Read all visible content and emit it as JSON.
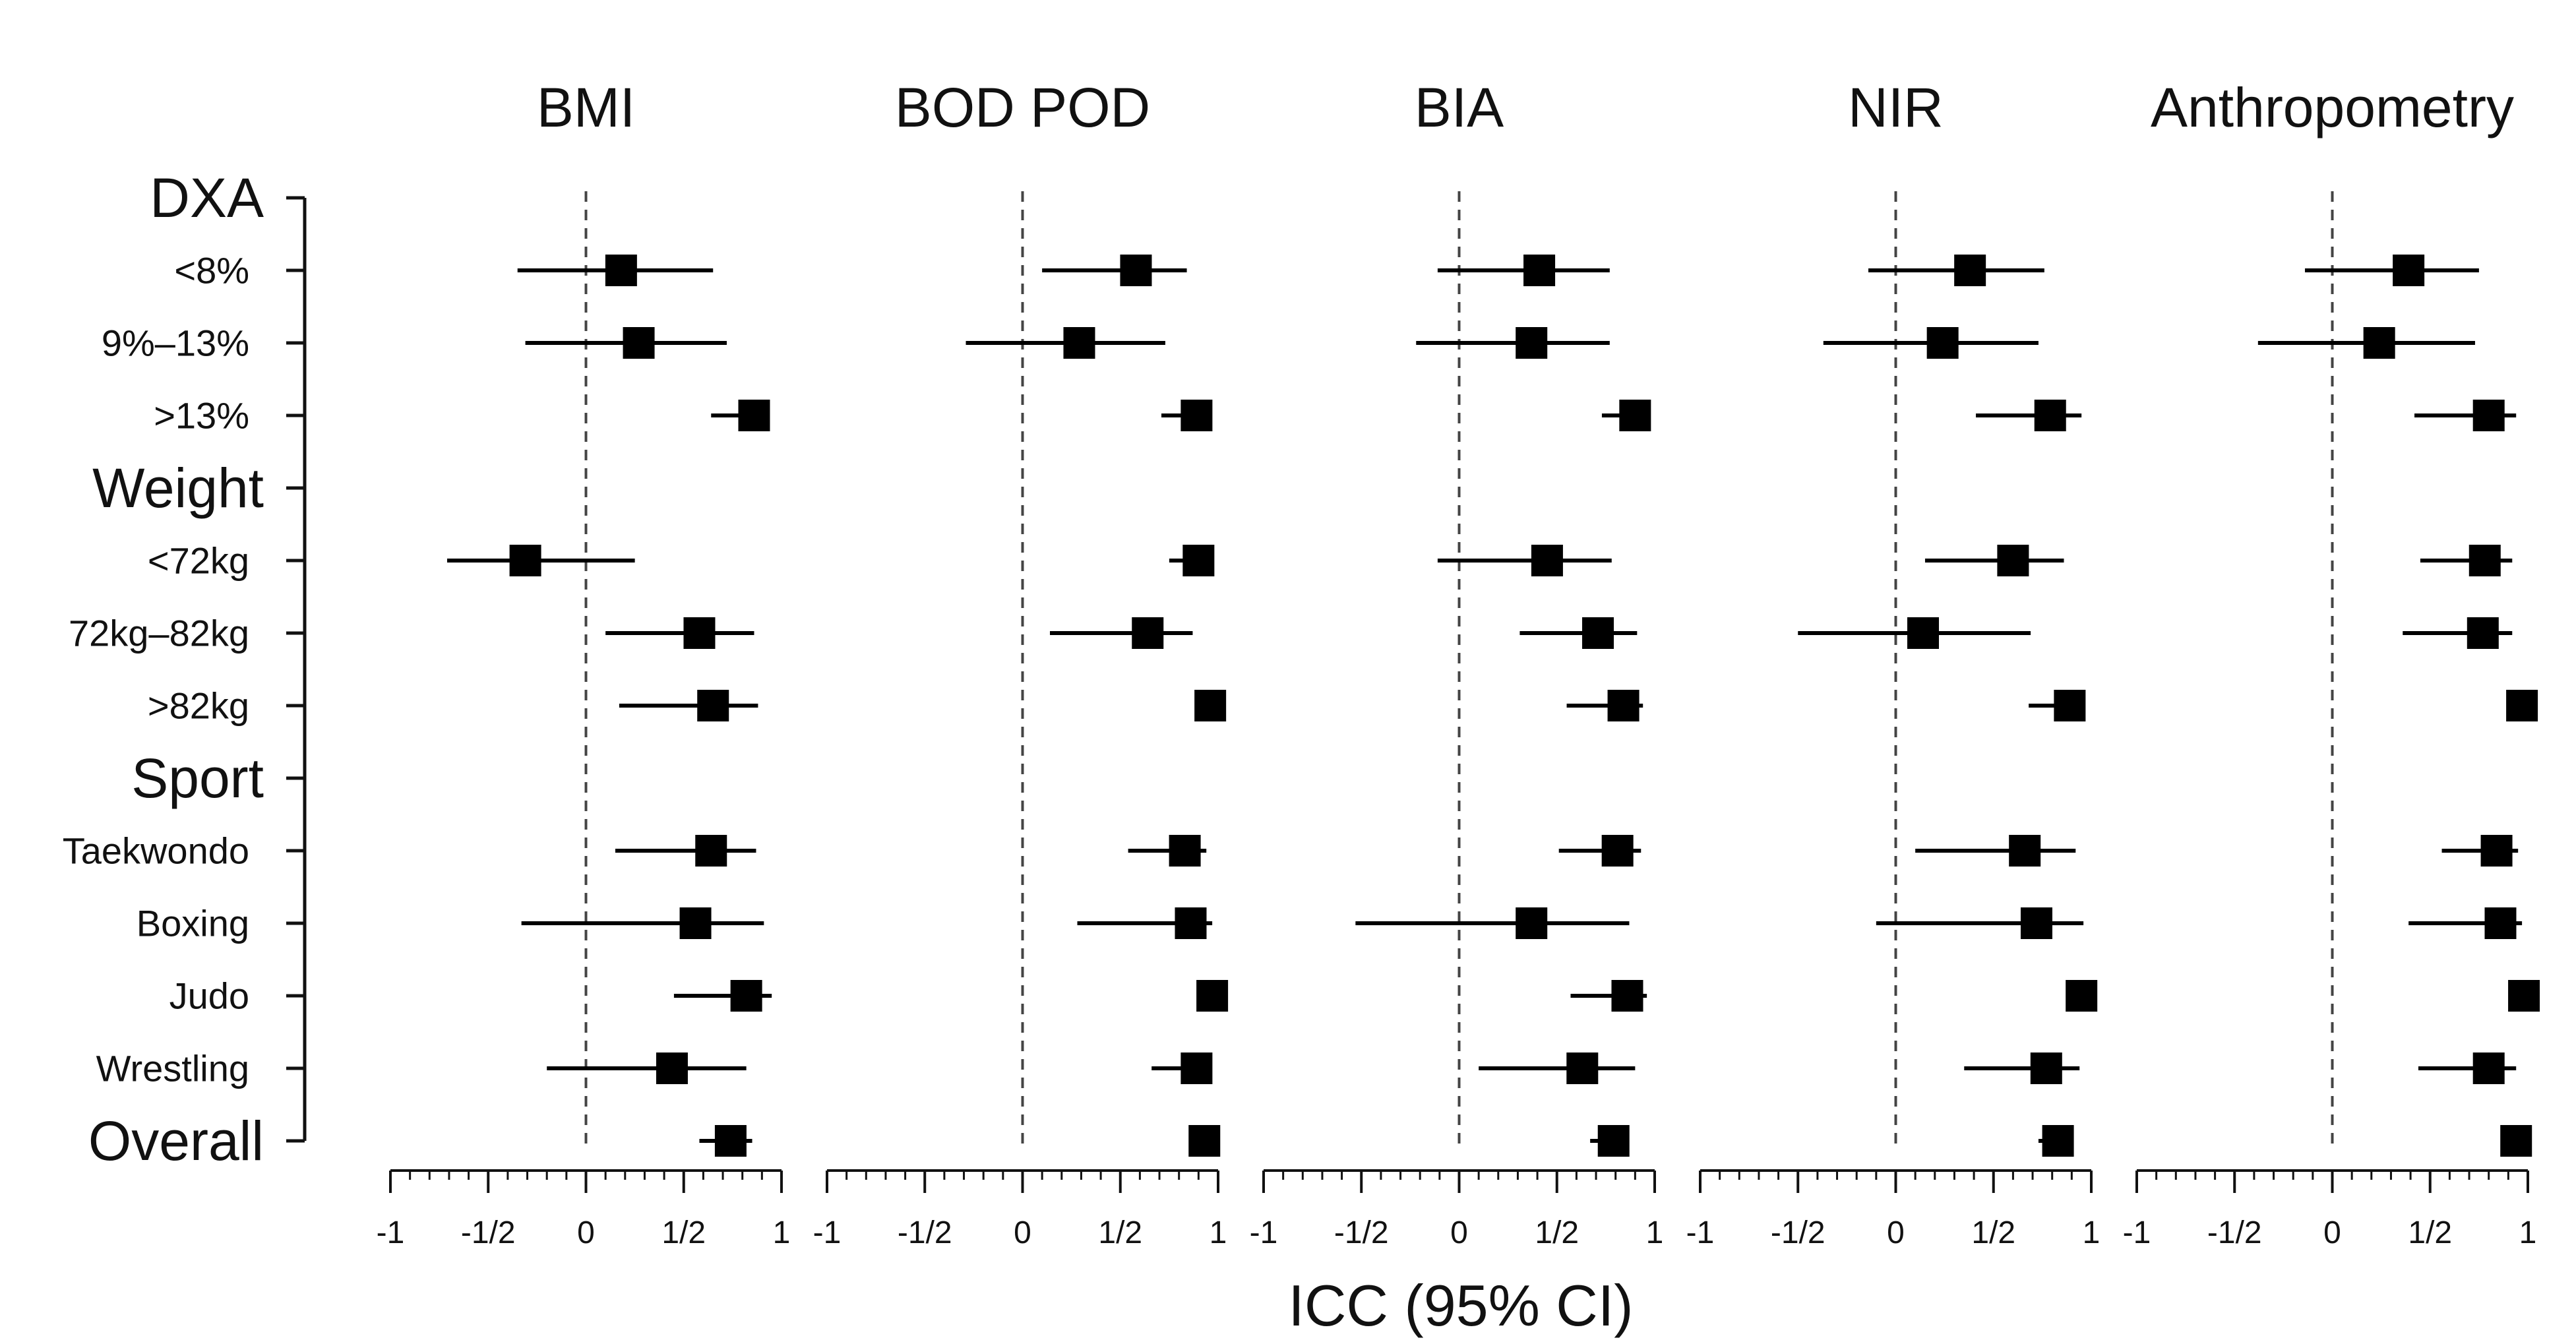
{
  "chart_data": {
    "type": "forest",
    "xlabel": "ICC (95% CI)",
    "xlim": [
      -1,
      1
    ],
    "xtick_labels": [
      "-1",
      "-1/2",
      "0",
      "1/2",
      "1"
    ],
    "xtick_values": [
      -1,
      -0.5,
      0,
      0.5,
      1
    ],
    "reference_line": 0,
    "colors": {
      "marker": "#000000",
      "reference_line": "#444444",
      "axis": "#111111"
    },
    "rows": [
      {
        "label": "DXA",
        "header": true
      },
      {
        "label": "<8%",
        "header": false
      },
      {
        "label": "9%–13%",
        "header": false
      },
      {
        "label": ">13%",
        "header": false
      },
      {
        "label": "Weight",
        "header": true
      },
      {
        "label": "<72kg",
        "header": false
      },
      {
        "label": "72kg–82kg",
        "header": false
      },
      {
        "label": ">82kg",
        "header": false
      },
      {
        "label": "Sport",
        "header": true
      },
      {
        "label": "Taekwondo",
        "header": false
      },
      {
        "label": "Boxing",
        "header": false
      },
      {
        "label": "Judo",
        "header": false
      },
      {
        "label": "Wrestling",
        "header": false
      },
      {
        "label": "Overall",
        "header": true
      }
    ],
    "panels": [
      {
        "title": "BMI",
        "estimates": [
          {
            "row": "<8%",
            "value": 0.18,
            "lower": -0.35,
            "upper": 0.65
          },
          {
            "row": "9%–13%",
            "value": 0.27,
            "lower": -0.31,
            "upper": 0.72
          },
          {
            "row": ">13%",
            "value": 0.86,
            "lower": 0.64,
            "upper": 0.93
          },
          {
            "row": "<72kg",
            "value": -0.31,
            "lower": -0.71,
            "upper": 0.25
          },
          {
            "row": "72kg–82kg",
            "value": 0.58,
            "lower": 0.1,
            "upper": 0.86
          },
          {
            "row": ">82kg",
            "value": 0.65,
            "lower": 0.17,
            "upper": 0.88
          },
          {
            "row": "Taekwondo",
            "value": 0.64,
            "lower": 0.15,
            "upper": 0.87
          },
          {
            "row": "Boxing",
            "value": 0.56,
            "lower": -0.33,
            "upper": 0.91
          },
          {
            "row": "Judo",
            "value": 0.82,
            "lower": 0.45,
            "upper": 0.95
          },
          {
            "row": "Wrestling",
            "value": 0.44,
            "lower": -0.2,
            "upper": 0.82
          },
          {
            "row": "Overall",
            "value": 0.74,
            "lower": 0.58,
            "upper": 0.85
          }
        ]
      },
      {
        "title": "BOD POD",
        "estimates": [
          {
            "row": "<8%",
            "value": 0.58,
            "lower": 0.1,
            "upper": 0.84
          },
          {
            "row": "9%–13%",
            "value": 0.29,
            "lower": -0.29,
            "upper": 0.73
          },
          {
            "row": ">13%",
            "value": 0.89,
            "lower": 0.71,
            "upper": 0.96
          },
          {
            "row": "<72kg",
            "value": 0.9,
            "lower": 0.75,
            "upper": 0.96
          },
          {
            "row": "72kg–82kg",
            "value": 0.64,
            "lower": 0.14,
            "upper": 0.87
          },
          {
            "row": ">82kg",
            "value": 0.96,
            "lower": 0.9,
            "upper": 0.99
          },
          {
            "row": "Taekwondo",
            "value": 0.83,
            "lower": 0.54,
            "upper": 0.94
          },
          {
            "row": "Boxing",
            "value": 0.86,
            "lower": 0.28,
            "upper": 0.97
          },
          {
            "row": "Judo",
            "value": 0.97,
            "lower": 0.92,
            "upper": 0.99
          },
          {
            "row": "Wrestling",
            "value": 0.89,
            "lower": 0.66,
            "upper": 0.96
          },
          {
            "row": "Overall",
            "value": 0.93,
            "lower": 0.88,
            "upper": 0.96
          }
        ]
      },
      {
        "title": "BIA",
        "estimates": [
          {
            "row": "<8%",
            "value": 0.41,
            "lower": -0.11,
            "upper": 0.77
          },
          {
            "row": "9%–13%",
            "value": 0.37,
            "lower": -0.22,
            "upper": 0.77
          },
          {
            "row": ">13%",
            "value": 0.9,
            "lower": 0.73,
            "upper": 0.97
          },
          {
            "row": "<72kg",
            "value": 0.45,
            "lower": -0.11,
            "upper": 0.78
          },
          {
            "row": "72kg–82kg",
            "value": 0.71,
            "lower": 0.31,
            "upper": 0.91
          },
          {
            "row": ">82kg",
            "value": 0.84,
            "lower": 0.55,
            "upper": 0.94
          },
          {
            "row": "Taekwondo",
            "value": 0.81,
            "lower": 0.51,
            "upper": 0.93
          },
          {
            "row": "Boxing",
            "value": 0.37,
            "lower": -0.53,
            "upper": 0.87
          },
          {
            "row": "Judo",
            "value": 0.86,
            "lower": 0.57,
            "upper": 0.96
          },
          {
            "row": "Wrestling",
            "value": 0.63,
            "lower": 0.1,
            "upper": 0.9
          },
          {
            "row": "Overall",
            "value": 0.79,
            "lower": 0.67,
            "upper": 0.87
          }
        ]
      },
      {
        "title": "NIR",
        "estimates": [
          {
            "row": "<8%",
            "value": 0.38,
            "lower": -0.14,
            "upper": 0.76
          },
          {
            "row": "9%–13%",
            "value": 0.24,
            "lower": -0.37,
            "upper": 0.73
          },
          {
            "row": ">13%",
            "value": 0.79,
            "lower": 0.41,
            "upper": 0.95
          },
          {
            "row": "<72kg",
            "value": 0.6,
            "lower": 0.15,
            "upper": 0.86
          },
          {
            "row": "72kg–82kg",
            "value": 0.14,
            "lower": -0.5,
            "upper": 0.69
          },
          {
            "row": ">82kg",
            "value": 0.89,
            "lower": 0.68,
            "upper": 0.96
          },
          {
            "row": "Taekwondo",
            "value": 0.66,
            "lower": 0.1,
            "upper": 0.92
          },
          {
            "row": "Boxing",
            "value": 0.72,
            "lower": -0.1,
            "upper": 0.96
          },
          {
            "row": "Judo",
            "value": 0.95,
            "lower": 0.87,
            "upper": 0.99
          },
          {
            "row": "Wrestling",
            "value": 0.77,
            "lower": 0.35,
            "upper": 0.94
          },
          {
            "row": "Overall",
            "value": 0.83,
            "lower": 0.73,
            "upper": 0.9
          }
        ]
      },
      {
        "title": "Anthropometry",
        "estimates": [
          {
            "row": "<8%",
            "value": 0.39,
            "lower": -0.14,
            "upper": 0.75
          },
          {
            "row": "9%–13%",
            "value": 0.24,
            "lower": -0.38,
            "upper": 0.73
          },
          {
            "row": ">13%",
            "value": 0.8,
            "lower": 0.42,
            "upper": 0.94
          },
          {
            "row": "<72kg",
            "value": 0.78,
            "lower": 0.45,
            "upper": 0.92
          },
          {
            "row": "72kg–82kg",
            "value": 0.77,
            "lower": 0.36,
            "upper": 0.92
          },
          {
            "row": ">82kg",
            "value": 0.97,
            "lower": 0.92,
            "upper": 0.99
          },
          {
            "row": "Taekwondo",
            "value": 0.84,
            "lower": 0.56,
            "upper": 0.95
          },
          {
            "row": "Boxing",
            "value": 0.86,
            "lower": 0.39,
            "upper": 0.97
          },
          {
            "row": "Judo",
            "value": 0.98,
            "lower": 0.93,
            "upper": 0.99
          },
          {
            "row": "Wrestling",
            "value": 0.8,
            "lower": 0.44,
            "upper": 0.94
          },
          {
            "row": "Overall",
            "value": 0.94,
            "lower": 0.9,
            "upper": 0.97
          }
        ]
      }
    ]
  }
}
